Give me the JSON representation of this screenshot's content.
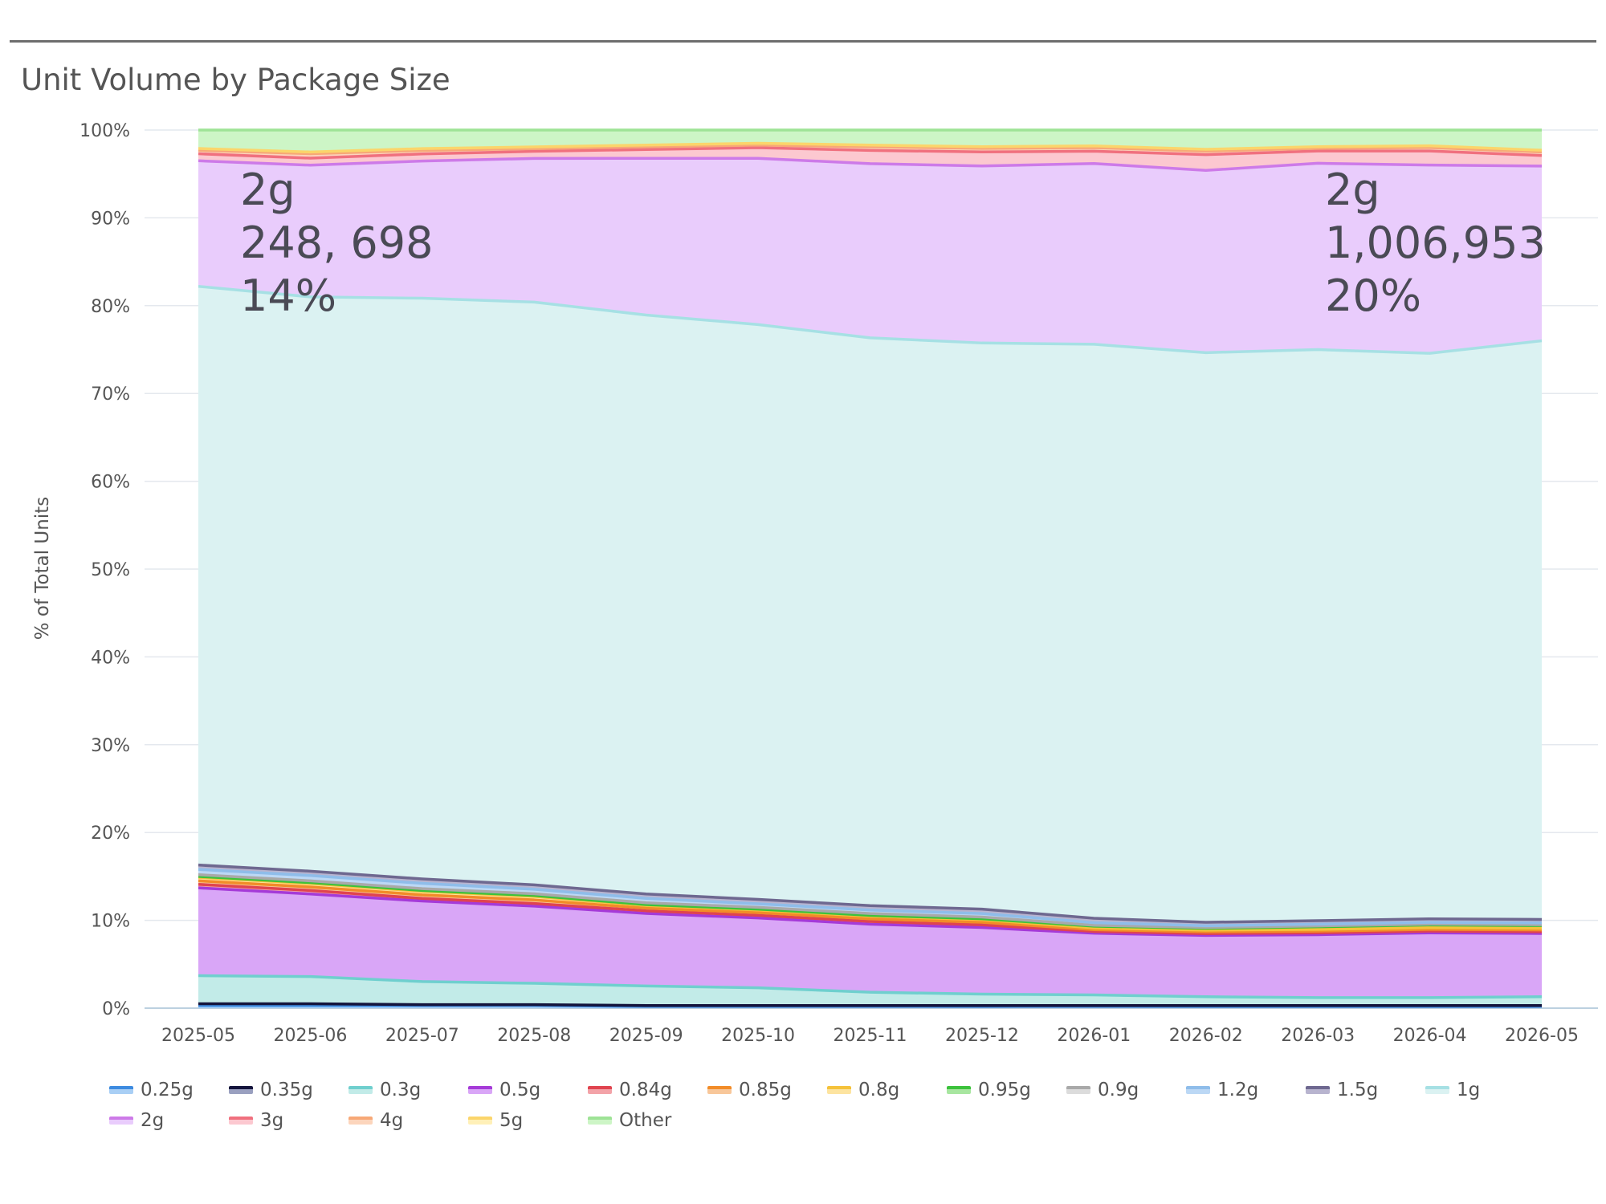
{
  "chart_data": {
    "type": "area",
    "stacked": "percent",
    "title": "Unit Volume by Package Size",
    "xlabel": "",
    "ylabel": "% of Total Units",
    "ylim": [
      0,
      100
    ],
    "yticks": [
      "0%",
      "10%",
      "20%",
      "30%",
      "40%",
      "50%",
      "60%",
      "70%",
      "80%",
      "90%",
      "100%"
    ],
    "grid": true,
    "legend_position": "bottom",
    "categories": [
      "2025-05",
      "2025-06",
      "2025-07",
      "2025-08",
      "2025-09",
      "2025-10",
      "2025-11",
      "2025-12",
      "2026-01",
      "2026-02",
      "2026-03",
      "2026-04",
      "2026-05"
    ],
    "series": [
      {
        "name": "0.25g",
        "fill": "#a9cff5",
        "line": "#3d8be0",
        "values": [
          0.3,
          0.3,
          0.3,
          0.3,
          0.2,
          0.2,
          0.2,
          0.2,
          0.2,
          0.2,
          0.2,
          0.2,
          0.2
        ]
      },
      {
        "name": "0.35g",
        "fill": "#9aa0c0",
        "line": "#14143c",
        "values": [
          0.2,
          0.2,
          0.1,
          0.1,
          0.1,
          0.1,
          0.1,
          0.1,
          0.1,
          0.1,
          0.1,
          0.1,
          0.1
        ]
      },
      {
        "name": "0.3g",
        "fill": "#c2ebe8",
        "line": "#6fcfce",
        "values": [
          3.2,
          3.1,
          2.6,
          2.4,
          2.2,
          2.0,
          1.5,
          1.3,
          1.2,
          1.0,
          0.9,
          0.9,
          1.0
        ]
      },
      {
        "name": "0.5g",
        "fill": "#d9a6f7",
        "line": "#a53ad8",
        "values": [
          10.0,
          9.4,
          9.1,
          8.7,
          8.2,
          7.9,
          7.7,
          7.6,
          7.0,
          7.0,
          7.2,
          7.4,
          7.2
        ]
      },
      {
        "name": "0.84g",
        "fill": "#f3a3a8",
        "line": "#e0444f",
        "values": [
          0.4,
          0.4,
          0.3,
          0.3,
          0.3,
          0.3,
          0.3,
          0.3,
          0.2,
          0.2,
          0.2,
          0.2,
          0.2
        ]
      },
      {
        "name": "0.85g",
        "fill": "#f8c79a",
        "line": "#f28c28",
        "values": [
          0.4,
          0.4,
          0.4,
          0.4,
          0.3,
          0.3,
          0.3,
          0.3,
          0.2,
          0.2,
          0.2,
          0.2,
          0.2
        ]
      },
      {
        "name": "0.8g",
        "fill": "#fde4a0",
        "line": "#f5c23a",
        "values": [
          0.4,
          0.4,
          0.4,
          0.4,
          0.3,
          0.3,
          0.3,
          0.3,
          0.2,
          0.2,
          0.2,
          0.2,
          0.2
        ]
      },
      {
        "name": "0.95g",
        "fill": "#a8e6a0",
        "line": "#3cc23c",
        "values": [
          0.1,
          0.1,
          0.1,
          0.1,
          0.1,
          0.1,
          0.1,
          0.1,
          0.2,
          0.2,
          0.3,
          0.3,
          0.3
        ]
      },
      {
        "name": "0.9g",
        "fill": "#dcdcdc",
        "line": "#a9a9a9",
        "values": [
          0.2,
          0.2,
          0.2,
          0.2,
          0.2,
          0.2,
          0.2,
          0.2,
          0.1,
          0.1,
          0.1,
          0.1,
          0.1
        ]
      },
      {
        "name": "1.2g",
        "fill": "#bcd8f5",
        "line": "#8fbdea",
        "values": [
          0.6,
          0.6,
          0.6,
          0.5,
          0.5,
          0.4,
          0.4,
          0.4,
          0.3,
          0.2,
          0.2,
          0.2,
          0.2
        ]
      },
      {
        "name": "1.5g",
        "fill": "#b8b4cf",
        "line": "#6e6890",
        "values": [
          0.5,
          0.5,
          0.5,
          0.5,
          0.5,
          0.5,
          0.5,
          0.5,
          0.5,
          0.4,
          0.4,
          0.4,
          0.4
        ]
      },
      {
        "name": "1g",
        "fill": "#dbf2f2",
        "line": "#a6e0e4",
        "values": [
          65.9,
          65.4,
          65.6,
          65.7,
          65.4,
          65.0,
          64.2,
          64.6,
          65.1,
          65.0,
          65.3,
          64.6,
          65.9
        ]
      },
      {
        "name": "2g",
        "fill": "#e9ccfc",
        "line": "#cd7ae8",
        "values": [
          14.3,
          15.0,
          15.5,
          16.2,
          17.7,
          18.8,
          19.7,
          20.2,
          20.5,
          20.8,
          21.3,
          21.5,
          19.9
        ]
      },
      {
        "name": "3g",
        "fill": "#fcc8d0",
        "line": "#f0707e",
        "values": [
          0.8,
          0.8,
          0.8,
          0.8,
          1.0,
          1.2,
          1.5,
          1.6,
          1.4,
          1.8,
          1.4,
          1.6,
          1.2
        ]
      },
      {
        "name": "4g",
        "fill": "#fcd5bc",
        "line": "#f7a877",
        "values": [
          0.4,
          0.5,
          0.4,
          0.3,
          0.3,
          0.3,
          0.4,
          0.4,
          0.4,
          0.4,
          0.3,
          0.4,
          0.4
        ]
      },
      {
        "name": "5g",
        "fill": "#fff0b8",
        "line": "#fbd56b",
        "values": [
          0.2,
          0.2,
          0.2,
          0.2,
          0.2,
          0.2,
          0.2,
          0.2,
          0.2,
          0.2,
          0.2,
          0.2,
          0.2
        ]
      },
      {
        "name": "Other",
        "fill": "#cdf5c6",
        "line": "#9ee396",
        "values": [
          2.1,
          2.5,
          2.1,
          1.9,
          1.7,
          1.5,
          1.7,
          1.9,
          1.8,
          2.2,
          1.9,
          1.8,
          2.3
        ]
      }
    ],
    "annotations": [
      {
        "series": "2g",
        "category": "2025-05",
        "lines": [
          "2g",
          "248, 698",
          "14%"
        ]
      },
      {
        "series": "2g",
        "category": "2026-05",
        "lines": [
          "2g",
          "1,006,953",
          "20%"
        ]
      }
    ]
  }
}
